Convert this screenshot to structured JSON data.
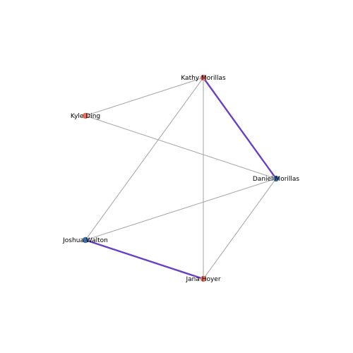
{
  "graph": {
    "nodes": [
      {
        "id": "kathy",
        "label": "Kathy Morillas",
        "color": "#e8705f"
      },
      {
        "id": "kyle",
        "label": "Kyle Ding",
        "color": "#e8705f"
      },
      {
        "id": "daniel",
        "label": "Daniel Morillas",
        "color": "#3f6fa0"
      },
      {
        "id": "joshua",
        "label": "Joshua Walton",
        "color": "#3f6fa0"
      },
      {
        "id": "jana",
        "label": "Jana Hoyer",
        "color": "#e8705f"
      }
    ],
    "edges": [
      {
        "source": "kathy",
        "target": "kyle",
        "highlighted": false
      },
      {
        "source": "kathy",
        "target": "daniel",
        "highlighted": true
      },
      {
        "source": "kathy",
        "target": "joshua",
        "highlighted": false
      },
      {
        "source": "kathy",
        "target": "jana",
        "highlighted": false
      },
      {
        "source": "kyle",
        "target": "daniel",
        "highlighted": false
      },
      {
        "source": "daniel",
        "target": "joshua",
        "highlighted": false
      },
      {
        "source": "daniel",
        "target": "jana",
        "highlighted": false
      },
      {
        "source": "joshua",
        "target": "jana",
        "highlighted": true
      }
    ],
    "colors": {
      "edge": "#aaaaaa",
      "highlight_edge": "#6a3fc8"
    }
  }
}
